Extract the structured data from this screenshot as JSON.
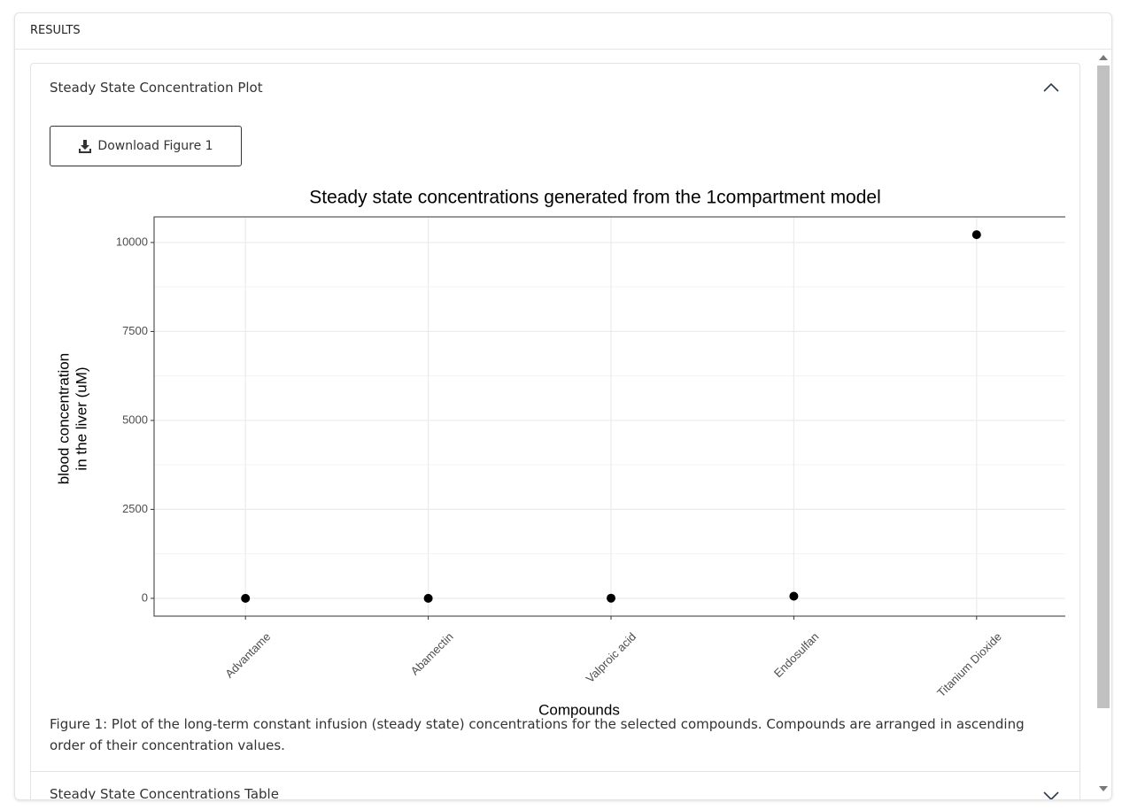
{
  "panel": {
    "title": "RESULTS"
  },
  "accordion": [
    {
      "title": "Steady State Concentration Plot",
      "button": "Download Figure 1",
      "caption": "Figure 1: Plot of the long-term constant infusion (steady state) concentrations for the selected compounds. Compounds are arranged in ascending order of their concentration values."
    },
    {
      "title": "Steady State Concentrations Table"
    }
  ],
  "chart_data": {
    "type": "scatter",
    "title": "Steady state concentrations generated from the 1compartment model",
    "xlabel": "Compounds",
    "ylabel": [
      "blood concentration",
      "in the liver (uM)"
    ],
    "categories": [
      "Advantame",
      "Abamectin",
      "Valproic acid",
      "Endosulfan",
      "Titanium Dioxide"
    ],
    "values": [
      0,
      0,
      5,
      60,
      10220
    ],
    "color": "#000000",
    "ylim": [
      -500,
      10720
    ],
    "yticks": [
      0,
      2500,
      5000,
      7500,
      10000
    ],
    "grid": true
  }
}
